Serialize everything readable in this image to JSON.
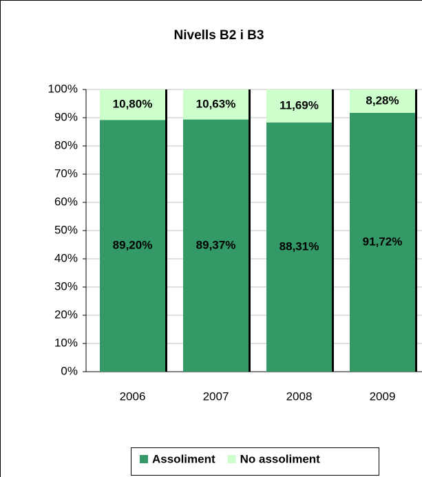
{
  "chart_data": {
    "type": "stacked_bar",
    "title": "Nivells B2 i B3",
    "categories": [
      "2006",
      "2007",
      "2008",
      "2009"
    ],
    "series": [
      {
        "name": "Assoliment",
        "color": "#339966",
        "values": [
          89.2,
          89.37,
          88.31,
          91.72
        ],
        "value_labels": [
          "89,20%",
          "89,37%",
          "88,31%",
          "91,72%"
        ]
      },
      {
        "name": "No assoliment",
        "color": "#ccffcc",
        "values": [
          10.8,
          10.63,
          11.69,
          8.28
        ],
        "value_labels": [
          "10,80%",
          "10,63%",
          "11,69%",
          "8,28%"
        ]
      }
    ],
    "ylim": [
      0,
      100
    ],
    "yticks": [
      {
        "value": 0,
        "label": "0%"
      },
      {
        "value": 10,
        "label": "10%"
      },
      {
        "value": 20,
        "label": "20%"
      },
      {
        "value": 30,
        "label": "30%"
      },
      {
        "value": 40,
        "label": "40%"
      },
      {
        "value": 50,
        "label": "50%"
      },
      {
        "value": 60,
        "label": "60%"
      },
      {
        "value": 70,
        "label": "70%"
      },
      {
        "value": 80,
        "label": "80%"
      },
      {
        "value": 90,
        "label": "90%"
      },
      {
        "value": 100,
        "label": "100%"
      }
    ],
    "grid": true,
    "legend": "bottom"
  }
}
